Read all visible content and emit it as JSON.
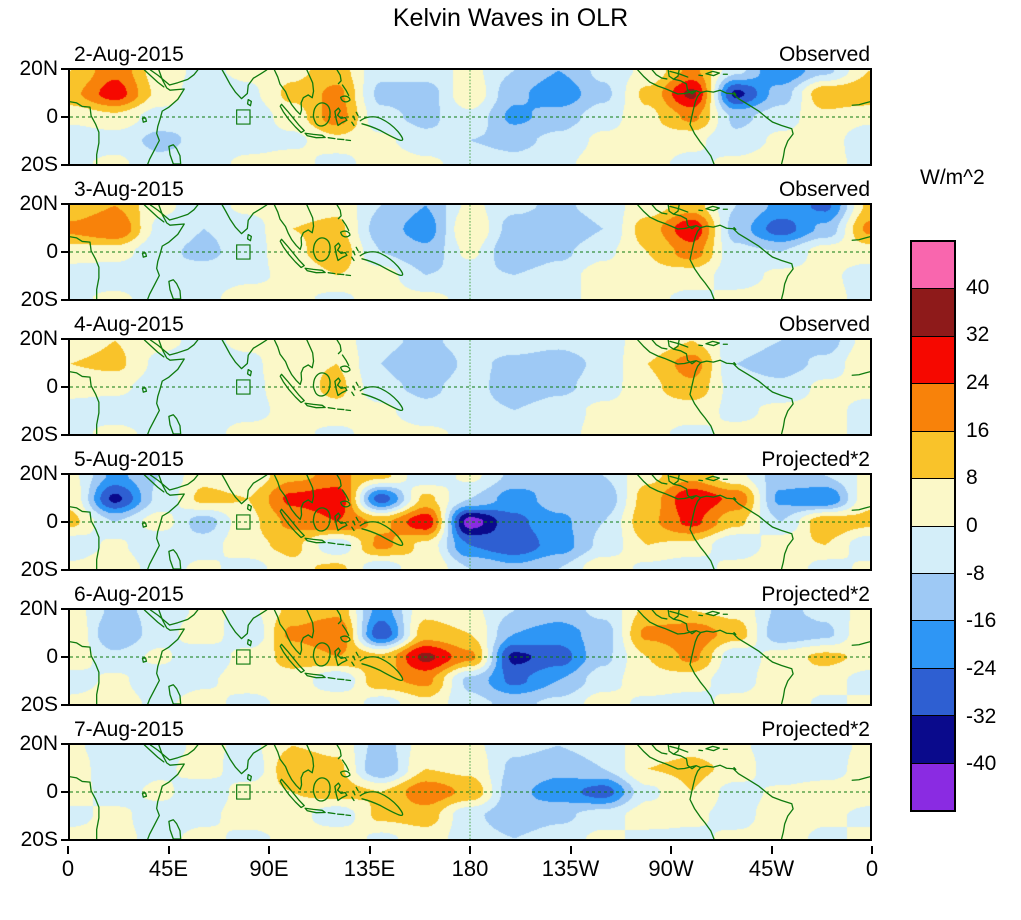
{
  "title": "Kelvin Waves in OLR",
  "units_label": "W/m^2",
  "y_axis": {
    "ticks": [
      "20N",
      "0",
      "20S"
    ]
  },
  "x_axis": {
    "ticks": [
      {
        "label": "0",
        "lon": 0
      },
      {
        "label": "45E",
        "lon": 45
      },
      {
        "label": "90E",
        "lon": 90
      },
      {
        "label": "135E",
        "lon": 135
      },
      {
        "label": "180",
        "lon": 180
      },
      {
        "label": "135W",
        "lon": 225
      },
      {
        "label": "90W",
        "lon": 270
      },
      {
        "label": "45W",
        "lon": 315
      },
      {
        "label": "0",
        "lon": 360
      }
    ]
  },
  "colorbar": {
    "boundary_labels": [
      "40",
      "32",
      "24",
      "16",
      "8",
      "0",
      "-8",
      "-16",
      "-24",
      "-32",
      "-40"
    ]
  },
  "colors": {
    "coastline": "#0E7A0E",
    "dateline": "#4CA64C",
    "axis": "#000000"
  },
  "chart_data": {
    "type": "heatmap",
    "title": "Kelvin Waves in OLR",
    "units": "W/m^2",
    "lon_deg": [
      0,
      20,
      40,
      60,
      80,
      100,
      120,
      140,
      160,
      180,
      200,
      220,
      240,
      260,
      280,
      300,
      320,
      340,
      360
    ],
    "lat_deg": [
      20,
      10,
      0,
      -10,
      -20
    ],
    "contour_levels": [
      -40,
      -32,
      -24,
      -16,
      -8,
      0,
      8,
      16,
      24,
      32,
      40
    ],
    "band_colors_low_to_high": [
      "#8A2BE2",
      "#0A0A8C",
      "#2E5FD2",
      "#2E96F5",
      "#9EC9F5",
      "#D4EEF9",
      "#FBF8C8",
      "#F9C32A",
      "#F8820A",
      "#F60800",
      "#8E1A1A",
      "#F966AE"
    ],
    "legend_position": "right",
    "region_box": {
      "lon": [
        75,
        81
      ],
      "lat": [
        -3,
        3
      ]
    },
    "panels": [
      {
        "date": "2-Aug-2015",
        "label": "Observed",
        "grid": [
          [
            8,
            22,
            4,
            -2,
            2,
            6,
            12,
            -6,
            -4,
            2,
            -8,
            -16,
            -6,
            2,
            18,
            -6,
            -24,
            -10,
            8
          ],
          [
            14,
            28,
            6,
            -6,
            -2,
            10,
            18,
            -10,
            -12,
            6,
            -14,
            -22,
            -10,
            10,
            34,
            -34,
            -12,
            14,
            14
          ],
          [
            2,
            6,
            -4,
            -8,
            -6,
            4,
            20,
            -6,
            -10,
            -2,
            -18,
            -12,
            -4,
            6,
            18,
            -10,
            -4,
            6,
            2
          ],
          [
            -6,
            -4,
            -10,
            -6,
            -4,
            -2,
            6,
            2,
            -6,
            -8,
            -10,
            -6,
            2,
            4,
            2,
            -6,
            2,
            4,
            -6
          ],
          [
            -2,
            2,
            -6,
            -4,
            2,
            4,
            -4,
            6,
            2,
            -4,
            -6,
            -2,
            4,
            2,
            -2,
            2,
            6,
            2,
            -2
          ]
        ]
      },
      {
        "date": "3-Aug-2015",
        "label": "Observed",
        "grid": [
          [
            10,
            16,
            2,
            -4,
            2,
            4,
            6,
            -8,
            -16,
            2,
            -6,
            -10,
            -4,
            4,
            12,
            -8,
            -18,
            -26,
            10
          ],
          [
            18,
            24,
            -2,
            -8,
            -4,
            8,
            10,
            -12,
            -20,
            8,
            -12,
            -16,
            -8,
            12,
            30,
            -12,
            -28,
            -14,
            18
          ],
          [
            4,
            4,
            -6,
            -10,
            -4,
            6,
            14,
            -8,
            -14,
            2,
            -16,
            -10,
            -2,
            8,
            20,
            -6,
            -8,
            4,
            4
          ],
          [
            -4,
            -6,
            -8,
            -4,
            -2,
            2,
            8,
            4,
            -8,
            -6,
            -8,
            -4,
            4,
            6,
            4,
            -4,
            2,
            2,
            -4
          ],
          [
            -2,
            2,
            -4,
            -2,
            4,
            2,
            -2,
            4,
            2,
            -2,
            -4,
            -2,
            2,
            2,
            -2,
            2,
            4,
            2,
            -2
          ]
        ]
      },
      {
        "date": "4-Aug-2015",
        "label": "Observed",
        "grid": [
          [
            4,
            8,
            2,
            -2,
            2,
            2,
            4,
            -6,
            -10,
            -4,
            -4,
            -6,
            -2,
            2,
            8,
            -4,
            -8,
            -12,
            4
          ],
          [
            8,
            10,
            -2,
            -4,
            -2,
            6,
            8,
            -8,
            -16,
            -6,
            -10,
            -12,
            -6,
            8,
            20,
            -8,
            -12,
            -6,
            8
          ],
          [
            2,
            2,
            -4,
            -6,
            -2,
            4,
            10,
            -6,
            -10,
            -4,
            -14,
            -10,
            -4,
            6,
            14,
            -4,
            -6,
            2,
            2
          ],
          [
            -2,
            -4,
            -6,
            -2,
            -2,
            2,
            6,
            2,
            -6,
            -4,
            -8,
            -4,
            2,
            4,
            4,
            -2,
            2,
            2,
            -2
          ],
          [
            -2,
            2,
            -2,
            -2,
            2,
            2,
            -2,
            4,
            2,
            -2,
            -4,
            -2,
            2,
            2,
            -2,
            2,
            2,
            2,
            -2
          ]
        ]
      },
      {
        "date": "5-Aug-2015",
        "label": "Projected*2",
        "grid": [
          [
            2,
            -18,
            -8,
            6,
            2,
            14,
            18,
            10,
            -6,
            2,
            -10,
            -16,
            -8,
            6,
            14,
            2,
            -12,
            -8,
            2
          ],
          [
            6,
            -34,
            -6,
            10,
            8,
            26,
            30,
            -28,
            10,
            -8,
            -20,
            -12,
            -14,
            12,
            30,
            22,
            -18,
            -24,
            6
          ],
          [
            10,
            -8,
            4,
            -12,
            6,
            18,
            24,
            14,
            30,
            -44,
            -26,
            -18,
            -8,
            14,
            26,
            10,
            -8,
            14,
            10
          ],
          [
            -6,
            2,
            -8,
            -4,
            6,
            10,
            -6,
            18,
            6,
            -24,
            -30,
            -20,
            -6,
            8,
            6,
            -8,
            6,
            8,
            -6
          ],
          [
            2,
            6,
            -4,
            2,
            -4,
            6,
            10,
            -6,
            8,
            -8,
            -14,
            -8,
            6,
            -2,
            -6,
            4,
            8,
            -4,
            2
          ]
        ]
      },
      {
        "date": "6-Aug-2015",
        "label": "Projected*2",
        "grid": [
          [
            4,
            -10,
            -6,
            2,
            -2,
            10,
            14,
            -20,
            6,
            2,
            -8,
            -12,
            -6,
            10,
            8,
            6,
            -10,
            -6,
            4
          ],
          [
            8,
            -16,
            -4,
            6,
            -8,
            18,
            24,
            -30,
            12,
            8,
            -16,
            -20,
            -12,
            18,
            22,
            12,
            -14,
            -10,
            8
          ],
          [
            6,
            -6,
            2,
            -8,
            4,
            10,
            16,
            10,
            34,
            18,
            -34,
            -28,
            -10,
            8,
            18,
            -6,
            4,
            10,
            6
          ],
          [
            -4,
            2,
            -6,
            -2,
            6,
            6,
            -8,
            14,
            18,
            -10,
            -26,
            -16,
            -4,
            6,
            4,
            -6,
            8,
            4,
            -4
          ],
          [
            2,
            4,
            -2,
            4,
            -4,
            4,
            8,
            -4,
            6,
            -6,
            -10,
            -6,
            4,
            -2,
            -4,
            4,
            6,
            -2,
            2
          ]
        ]
      },
      {
        "date": "7-Aug-2015",
        "label": "Projected*2",
        "grid": [
          [
            2,
            -6,
            -4,
            2,
            -2,
            8,
            6,
            -12,
            4,
            2,
            -6,
            -8,
            -4,
            4,
            6,
            2,
            -6,
            -4,
            2
          ],
          [
            6,
            -8,
            -2,
            4,
            -6,
            14,
            10,
            -16,
            8,
            6,
            -10,
            -14,
            -8,
            8,
            10,
            6,
            -8,
            -6,
            6
          ],
          [
            4,
            -4,
            2,
            -6,
            4,
            8,
            12,
            8,
            22,
            14,
            -14,
            -20,
            -28,
            -2,
            8,
            -4,
            2,
            6,
            4
          ],
          [
            -2,
            2,
            -4,
            -2,
            4,
            4,
            -6,
            10,
            12,
            -6,
            -14,
            -10,
            -4,
            4,
            2,
            -4,
            6,
            2,
            -2
          ],
          [
            2,
            2,
            -2,
            2,
            -2,
            2,
            6,
            -2,
            4,
            -4,
            -8,
            -4,
            2,
            -2,
            -2,
            2,
            4,
            -2,
            2
          ]
        ]
      }
    ]
  }
}
